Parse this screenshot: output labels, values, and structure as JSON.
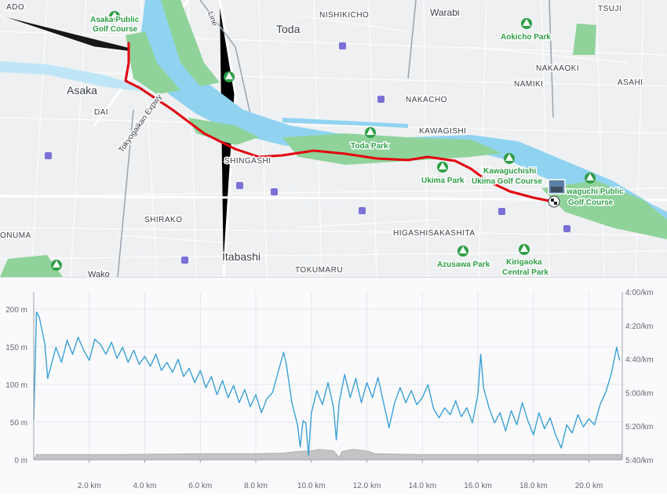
{
  "map": {
    "places": {
      "asaka": "Asaka",
      "toda": "Toda",
      "warabi": "Warabi",
      "tsuji": "TSUJI",
      "nishikicho": "NISHIKICHO",
      "nakaaoki": "NAKAAOKI",
      "namiki": "NAMIKI",
      "asahi": "ASAHI",
      "nakacho": "NAKACHO",
      "kawagishi": "KAWAGISHI",
      "shingashi": "SHINGASHI",
      "shirako": "SHIRAKO",
      "itabashi": "Itabashi",
      "tokumaru": "TOKUMARU",
      "higashisakashita": "HIGASHISAKASHITA",
      "dai": "DAI",
      "onuma": "ONUMA",
      "wako": "Wako",
      "ado": "ADO",
      "line": "Line",
      "expressway": "Tokyogaikan Expwy"
    },
    "parks": {
      "asaka_golf_1": "Asaka Public",
      "asaka_golf_2": "Golf Course",
      "aokicho": "Aokicho Park",
      "toda_park": "Toda Park",
      "ukima_park": "Ukima Park",
      "kawaguchishi_1": "Kawaguchishi",
      "kawaguchishi_2": "Ukima Golf Course",
      "kawaguchi_golf_1": "waguchi Public",
      "kawaguchi_golf_2": "Golf Course",
      "azusawa": "Azusawa Park",
      "kirigaoka_1": "Kirigaoka",
      "kirigaoka_2": "Central Park"
    },
    "colors": {
      "route": "#e3000f",
      "river": "#8fd3f1",
      "park": "#8fd39a",
      "park_marker": "#2e9e45",
      "map_bg": "#eef0f2"
    }
  },
  "chart_data": {
    "type": "line",
    "x_unit": "km",
    "x_ticks": [
      "2.0 km",
      "4.0 km",
      "6.0 km",
      "8.0 km",
      "10.0 km",
      "12.0 km",
      "14.0 km",
      "16.0 km",
      "18.0 km",
      "20.0 km"
    ],
    "xlim": [
      0,
      21.2
    ],
    "y_left_ticks": [
      "200 m",
      "150 m",
      "100 m",
      "50 m",
      "0 m"
    ],
    "y_left_range": [
      0,
      200
    ],
    "y_right_ticks": [
      "4:00/km",
      "4:20/km",
      "4:40/km",
      "5:00/km",
      "5:20/km",
      "5:40/km"
    ],
    "series": [
      {
        "kind": "pace",
        "color": "#3aa0d6",
        "points": [
          [
            0.0,
            5.27
          ],
          [
            0.1,
            4.2
          ],
          [
            0.2,
            4.25
          ],
          [
            0.4,
            4.52
          ],
          [
            0.5,
            4.86
          ],
          [
            0.6,
            4.76
          ],
          [
            0.8,
            4.55
          ],
          [
            1.0,
            4.7
          ],
          [
            1.2,
            4.48
          ],
          [
            1.4,
            4.62
          ],
          [
            1.6,
            4.45
          ],
          [
            1.8,
            4.58
          ],
          [
            2.0,
            4.68
          ],
          [
            2.2,
            4.47
          ],
          [
            2.4,
            4.52
          ],
          [
            2.6,
            4.62
          ],
          [
            2.8,
            4.5
          ],
          [
            3.0,
            4.66
          ],
          [
            3.2,
            4.55
          ],
          [
            3.4,
            4.7
          ],
          [
            3.6,
            4.58
          ],
          [
            3.8,
            4.72
          ],
          [
            4.0,
            4.64
          ],
          [
            4.2,
            4.74
          ],
          [
            4.4,
            4.62
          ],
          [
            4.6,
            4.78
          ],
          [
            4.8,
            4.7
          ],
          [
            5.0,
            4.8
          ],
          [
            5.2,
            4.67
          ],
          [
            5.4,
            4.84
          ],
          [
            5.6,
            4.76
          ],
          [
            5.8,
            4.9
          ],
          [
            6.0,
            4.78
          ],
          [
            6.2,
            4.95
          ],
          [
            6.4,
            4.84
          ],
          [
            6.6,
            5.02
          ],
          [
            6.8,
            4.88
          ],
          [
            7.0,
            5.05
          ],
          [
            7.2,
            4.93
          ],
          [
            7.4,
            5.1
          ],
          [
            7.6,
            4.97
          ],
          [
            7.8,
            5.14
          ],
          [
            8.0,
            5.02
          ],
          [
            8.2,
            5.2
          ],
          [
            8.4,
            5.06
          ],
          [
            8.6,
            5.0
          ],
          [
            8.8,
            4.8
          ],
          [
            9.0,
            4.6
          ],
          [
            9.1,
            4.72
          ],
          [
            9.3,
            5.1
          ],
          [
            9.5,
            5.32
          ],
          [
            9.6,
            5.54
          ],
          [
            9.7,
            5.28
          ],
          [
            9.8,
            5.3
          ],
          [
            9.9,
            5.62
          ],
          [
            10.0,
            5.2
          ],
          [
            10.2,
            4.98
          ],
          [
            10.4,
            5.12
          ],
          [
            10.6,
            4.9
          ],
          [
            10.8,
            5.15
          ],
          [
            10.9,
            5.47
          ],
          [
            11.0,
            5.1
          ],
          [
            11.2,
            4.82
          ],
          [
            11.4,
            5.05
          ],
          [
            11.6,
            4.86
          ],
          [
            11.8,
            5.1
          ],
          [
            12.0,
            4.9
          ],
          [
            12.2,
            5.05
          ],
          [
            12.4,
            4.85
          ],
          [
            12.6,
            5.1
          ],
          [
            12.8,
            5.35
          ],
          [
            13.0,
            5.1
          ],
          [
            13.2,
            4.95
          ],
          [
            13.4,
            5.1
          ],
          [
            13.6,
            4.98
          ],
          [
            13.8,
            5.12
          ],
          [
            14.0,
            5.05
          ],
          [
            14.2,
            4.92
          ],
          [
            14.4,
            5.16
          ],
          [
            14.6,
            5.25
          ],
          [
            14.8,
            5.15
          ],
          [
            15.0,
            5.22
          ],
          [
            15.2,
            5.08
          ],
          [
            15.4,
            5.24
          ],
          [
            15.6,
            5.15
          ],
          [
            15.8,
            5.3
          ],
          [
            16.0,
            5.02
          ],
          [
            16.1,
            4.62
          ],
          [
            16.2,
            4.95
          ],
          [
            16.4,
            5.15
          ],
          [
            16.6,
            5.3
          ],
          [
            16.8,
            5.2
          ],
          [
            17.0,
            5.38
          ],
          [
            17.2,
            5.18
          ],
          [
            17.4,
            5.32
          ],
          [
            17.6,
            5.1
          ],
          [
            17.8,
            5.28
          ],
          [
            18.0,
            5.42
          ],
          [
            18.2,
            5.2
          ],
          [
            18.4,
            5.36
          ],
          [
            18.6,
            5.25
          ],
          [
            18.8,
            5.42
          ],
          [
            19.0,
            5.55
          ],
          [
            19.2,
            5.32
          ],
          [
            19.4,
            5.4
          ],
          [
            19.6,
            5.22
          ],
          [
            19.8,
            5.34
          ],
          [
            20.0,
            5.26
          ],
          [
            20.2,
            5.32
          ],
          [
            20.4,
            5.12
          ],
          [
            20.6,
            5.0
          ],
          [
            20.8,
            4.82
          ],
          [
            21.0,
            4.55
          ],
          [
            21.1,
            4.68
          ]
        ]
      },
      {
        "kind": "elevation",
        "color": "#c4c4c6",
        "points": [
          [
            0.0,
            0
          ],
          [
            0.1,
            7
          ],
          [
            1.0,
            7
          ],
          [
            3.0,
            7
          ],
          [
            6.0,
            8
          ],
          [
            8.0,
            8
          ],
          [
            9.0,
            9
          ],
          [
            9.5,
            11
          ],
          [
            10.0,
            12
          ],
          [
            10.3,
            14
          ],
          [
            10.8,
            12
          ],
          [
            11.0,
            3
          ],
          [
            11.1,
            11
          ],
          [
            11.5,
            14
          ],
          [
            12.0,
            12
          ],
          [
            12.3,
            8
          ],
          [
            14.0,
            7
          ],
          [
            16.0,
            7
          ],
          [
            18.0,
            7
          ],
          [
            20.0,
            7
          ],
          [
            21.0,
            7
          ],
          [
            21.2,
            7
          ]
        ]
      }
    ]
  }
}
